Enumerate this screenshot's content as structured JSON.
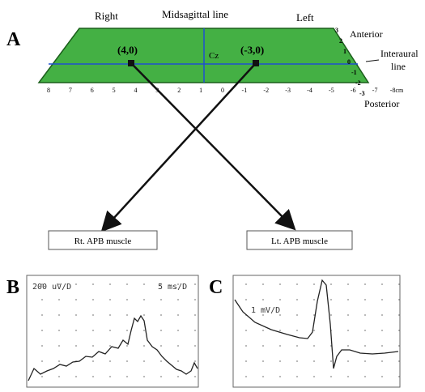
{
  "panel_a": {
    "label": "A",
    "right": "Right",
    "midline": "Midsagittal line",
    "left": "Left",
    "anterior": "Anterior",
    "interaural": [
      "Interaural",
      "line"
    ],
    "posterior": "Posterior",
    "cz": "Cz",
    "point_right": "(4,0)",
    "point_left": "(-3,0)",
    "x_ticks": [
      "8",
      "7",
      "6",
      "5",
      "4",
      "3",
      "2",
      "1",
      "0",
      "-1",
      "-2",
      "-3",
      "-4",
      "-5",
      "-6",
      "-7",
      "-8cm"
    ],
    "y_ticks": [
      "3",
      "2",
      "1",
      "0",
      "-1",
      "-2",
      "-3"
    ],
    "box_right": "Rt. APB muscle",
    "box_left": "Lt. APB muscle"
  },
  "panel_b": {
    "label": "B",
    "scale_v": "200 uV/D",
    "scale_t": "5 ms/D"
  },
  "panel_c": {
    "label": "C",
    "scale_v": "1 mV/D"
  }
}
